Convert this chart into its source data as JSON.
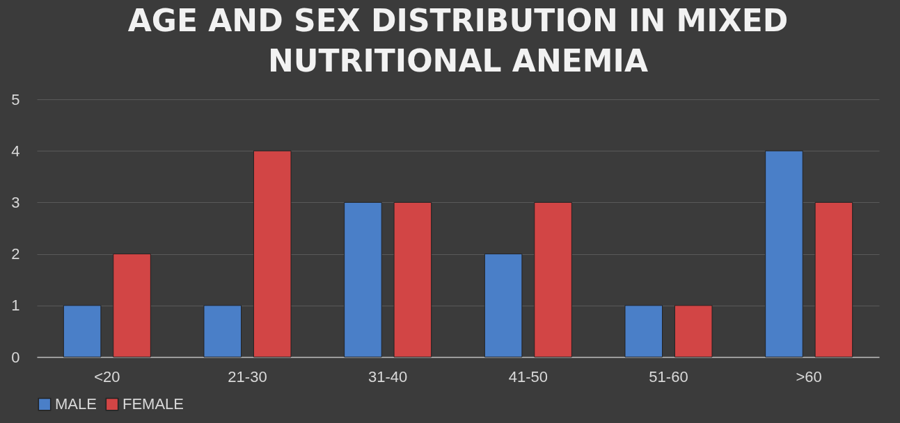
{
  "chart_data": {
    "type": "bar",
    "title": "AGE AND SEX DISTRIBUTION IN MIXED NUTRITIONAL ANEMIA",
    "categories": [
      "<20",
      "21-30",
      "31-40",
      "41-50",
      "51-60",
      ">60"
    ],
    "series": [
      {
        "name": "MALE",
        "color": "#4a7fc8",
        "values": [
          1,
          1,
          3,
          2,
          1,
          4
        ]
      },
      {
        "name": "FEMALE",
        "color": "#d24545",
        "values": [
          2,
          4,
          3,
          3,
          1,
          3
        ]
      }
    ],
    "ylim": [
      0,
      5
    ],
    "yticks": [
      0,
      1,
      2,
      3,
      4,
      5
    ],
    "grid": "y",
    "legend": "bottom"
  }
}
